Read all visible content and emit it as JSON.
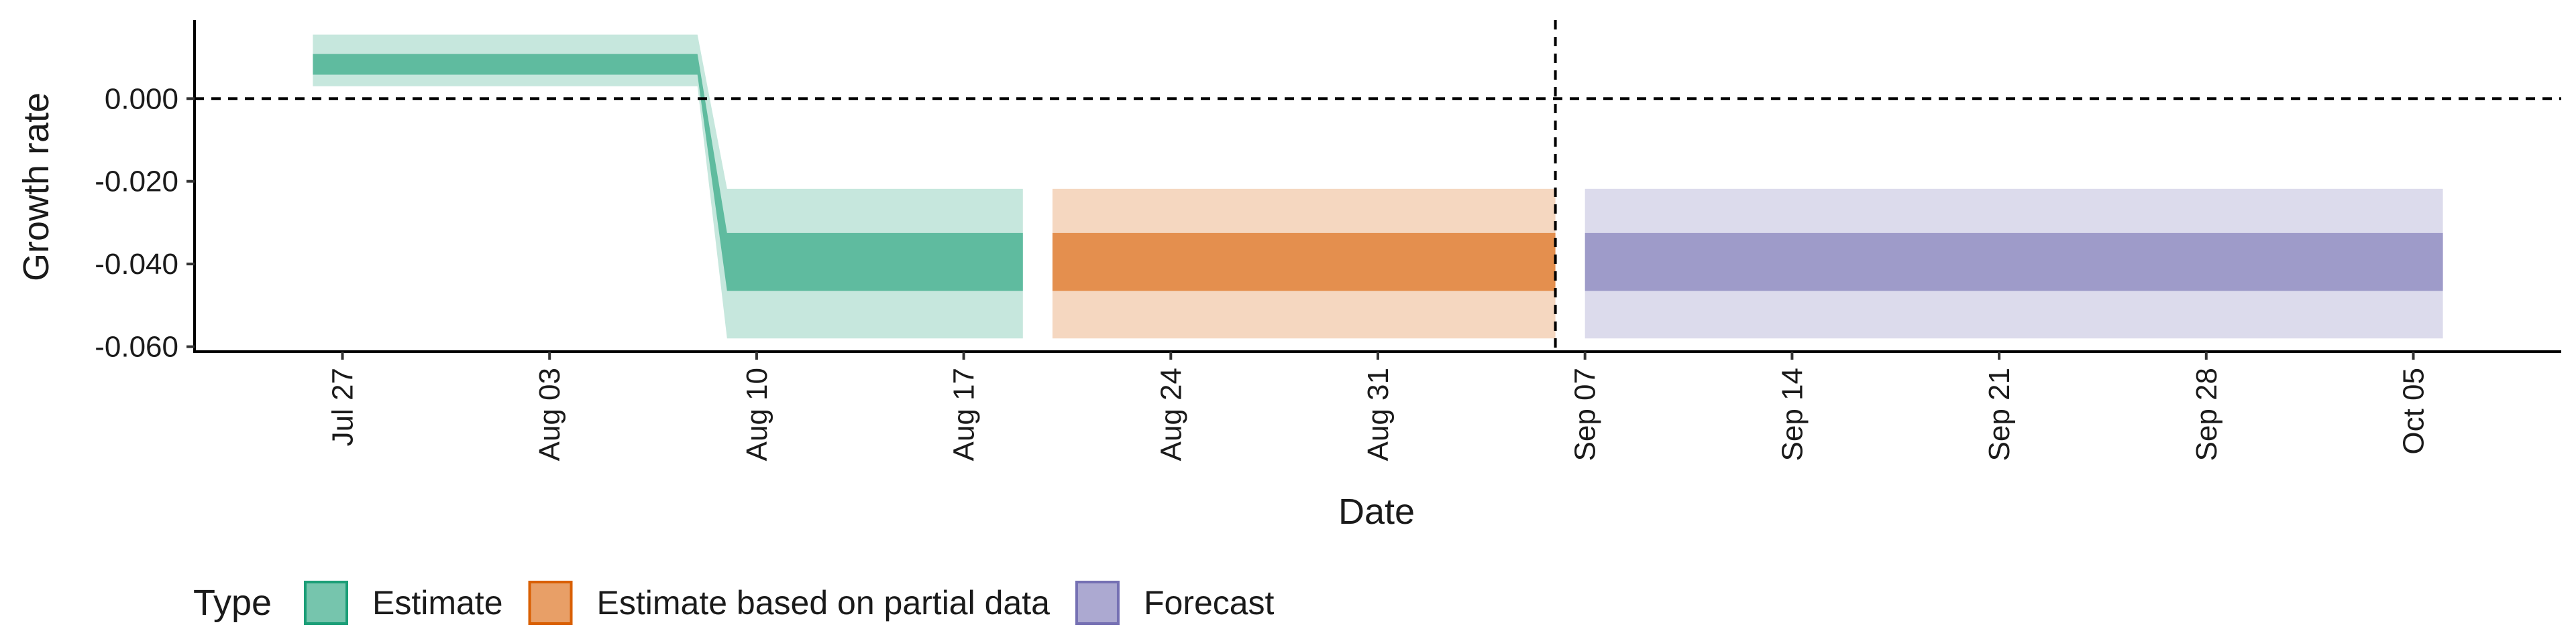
{
  "chart_data": {
    "type": "area",
    "xlabel": "Date",
    "ylabel": "Growth rate",
    "x_ticks": [
      "2020-07-27",
      "2020-08-03",
      "2020-08-10",
      "2020-08-17",
      "2020-08-24",
      "2020-08-31",
      "2020-09-07",
      "2020-09-14",
      "2020-09-21",
      "2020-09-28",
      "2020-10-05"
    ],
    "x_tick_labels": [
      "Jul 27",
      "Aug 03",
      "Aug 10",
      "Aug 17",
      "Aug 24",
      "Aug 31",
      "Sep 07",
      "Sep 14",
      "Sep 21",
      "Sep 28",
      "Oct 05"
    ],
    "xlim": [
      "2020-07-22",
      "2020-10-10"
    ],
    "y_ticks": [
      0.0,
      -0.02,
      -0.04,
      -0.06
    ],
    "y_tick_labels": [
      "0.000",
      "-0.020",
      "-0.040",
      "-0.060"
    ],
    "ylim": [
      -0.0612,
      0.019
    ],
    "reference_lines": [
      {
        "axis": "y",
        "value": 0,
        "style": "dashed"
      },
      {
        "axis": "x",
        "value": "2020-09-06",
        "style": "dashed"
      }
    ],
    "legend": {
      "title": "Type",
      "position": "bottom",
      "entries": [
        "Estimate",
        "Estimate based on partial data",
        "Forecast"
      ]
    },
    "series": [
      {
        "name": "Estimate",
        "color": "#1b9e77",
        "points": [
          {
            "x": "2020-07-26",
            "lower_90": 0.003,
            "lower_50": 0.0058,
            "upper_50": 0.0108,
            "upper_90": 0.0155
          },
          {
            "x": "2020-08-08",
            "lower_90": 0.003,
            "lower_50": 0.0058,
            "upper_50": 0.0108,
            "upper_90": 0.0155
          },
          {
            "x": "2020-08-09",
            "lower_90": -0.058,
            "lower_50": -0.0465,
            "upper_50": -0.0325,
            "upper_90": -0.0218
          },
          {
            "x": "2020-08-19",
            "lower_90": -0.058,
            "lower_50": -0.0465,
            "upper_50": -0.0325,
            "upper_90": -0.0218
          }
        ]
      },
      {
        "name": "Estimate based on partial data",
        "color": "#d95f02",
        "points": [
          {
            "x": "2020-08-20",
            "lower_90": -0.058,
            "lower_50": -0.0465,
            "upper_50": -0.0325,
            "upper_90": -0.0218
          },
          {
            "x": "2020-09-06",
            "lower_90": -0.058,
            "lower_50": -0.0465,
            "upper_50": -0.0325,
            "upper_90": -0.0218
          }
        ]
      },
      {
        "name": "Forecast",
        "color": "#7570b3",
        "points": [
          {
            "x": "2020-09-07",
            "lower_90": -0.058,
            "lower_50": -0.0465,
            "upper_50": -0.0325,
            "upper_90": -0.0218
          },
          {
            "x": "2020-10-06",
            "lower_90": -0.058,
            "lower_50": -0.0465,
            "upper_50": -0.0325,
            "upper_90": -0.0218
          }
        ]
      }
    ]
  }
}
